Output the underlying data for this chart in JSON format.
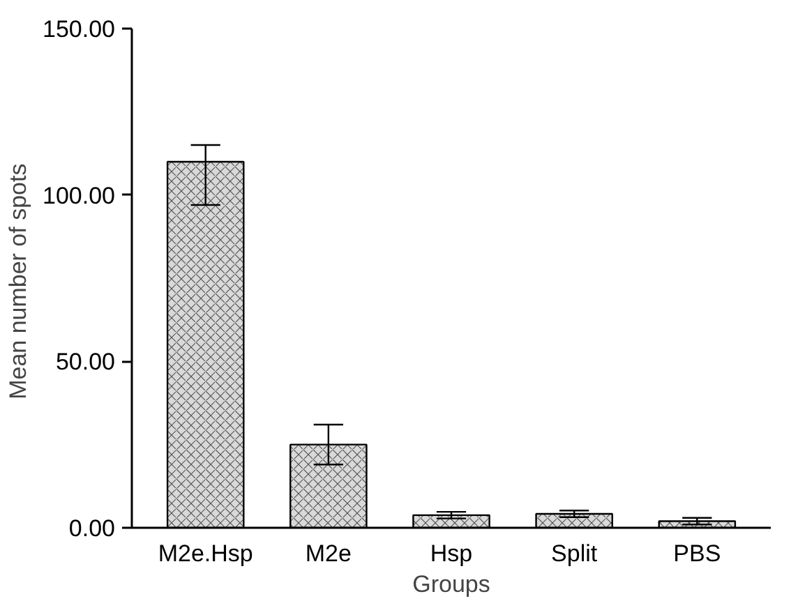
{
  "chart_data": {
    "type": "bar",
    "xlabel": "Groups",
    "ylabel": "Mean  number of spots",
    "categories": [
      "M2e.Hsp",
      "M2e",
      "Hsp",
      "Split",
      "PBS"
    ],
    "values": [
      110,
      25,
      3.8,
      4.2,
      2
    ],
    "errors": [
      [
        97,
        115
      ],
      6,
      1,
      1,
      1
    ],
    "color": "#d9d9d9",
    "ylim": [
      0,
      150
    ],
    "yticks": [
      {
        "value": 0,
        "label": "0.00"
      },
      {
        "value": 50,
        "label": "50.00"
      },
      {
        "value": 100,
        "label": "100.00"
      },
      {
        "value": 150,
        "label": "150.00"
      }
    ],
    "grid": false
  }
}
